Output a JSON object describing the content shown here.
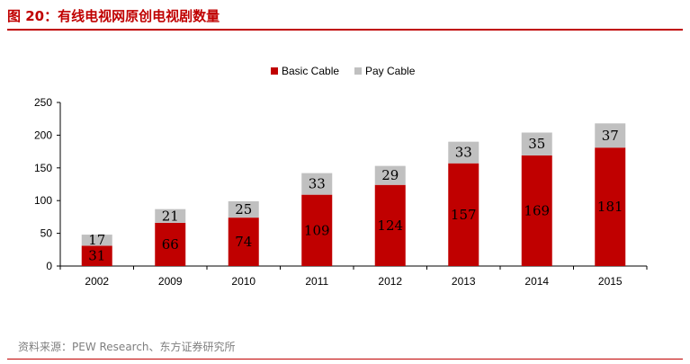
{
  "title": "图 20：有线电视网原创电视剧数量",
  "source": "资料来源：PEW Research、东方证券研究所",
  "colors": {
    "title": "#c00000",
    "basic": "#c00000",
    "pay": "#c0c0c0"
  },
  "chart_data": {
    "type": "bar",
    "stacked": true,
    "categories": [
      "2002",
      "2009",
      "2010",
      "2011",
      "2012",
      "2013",
      "2014",
      "2015"
    ],
    "series": [
      {
        "name": "Basic Cable",
        "values": [
          31,
          66,
          74,
          109,
          124,
          157,
          169,
          181
        ],
        "color": "#c00000"
      },
      {
        "name": "Pay Cable",
        "values": [
          17,
          21,
          25,
          33,
          29,
          33,
          35,
          37
        ],
        "color": "#c0c0c0"
      }
    ],
    "ylim": [
      0,
      250
    ],
    "yticks": [
      0,
      50,
      100,
      150,
      200,
      250
    ],
    "legend": "top-center",
    "grid": false
  }
}
